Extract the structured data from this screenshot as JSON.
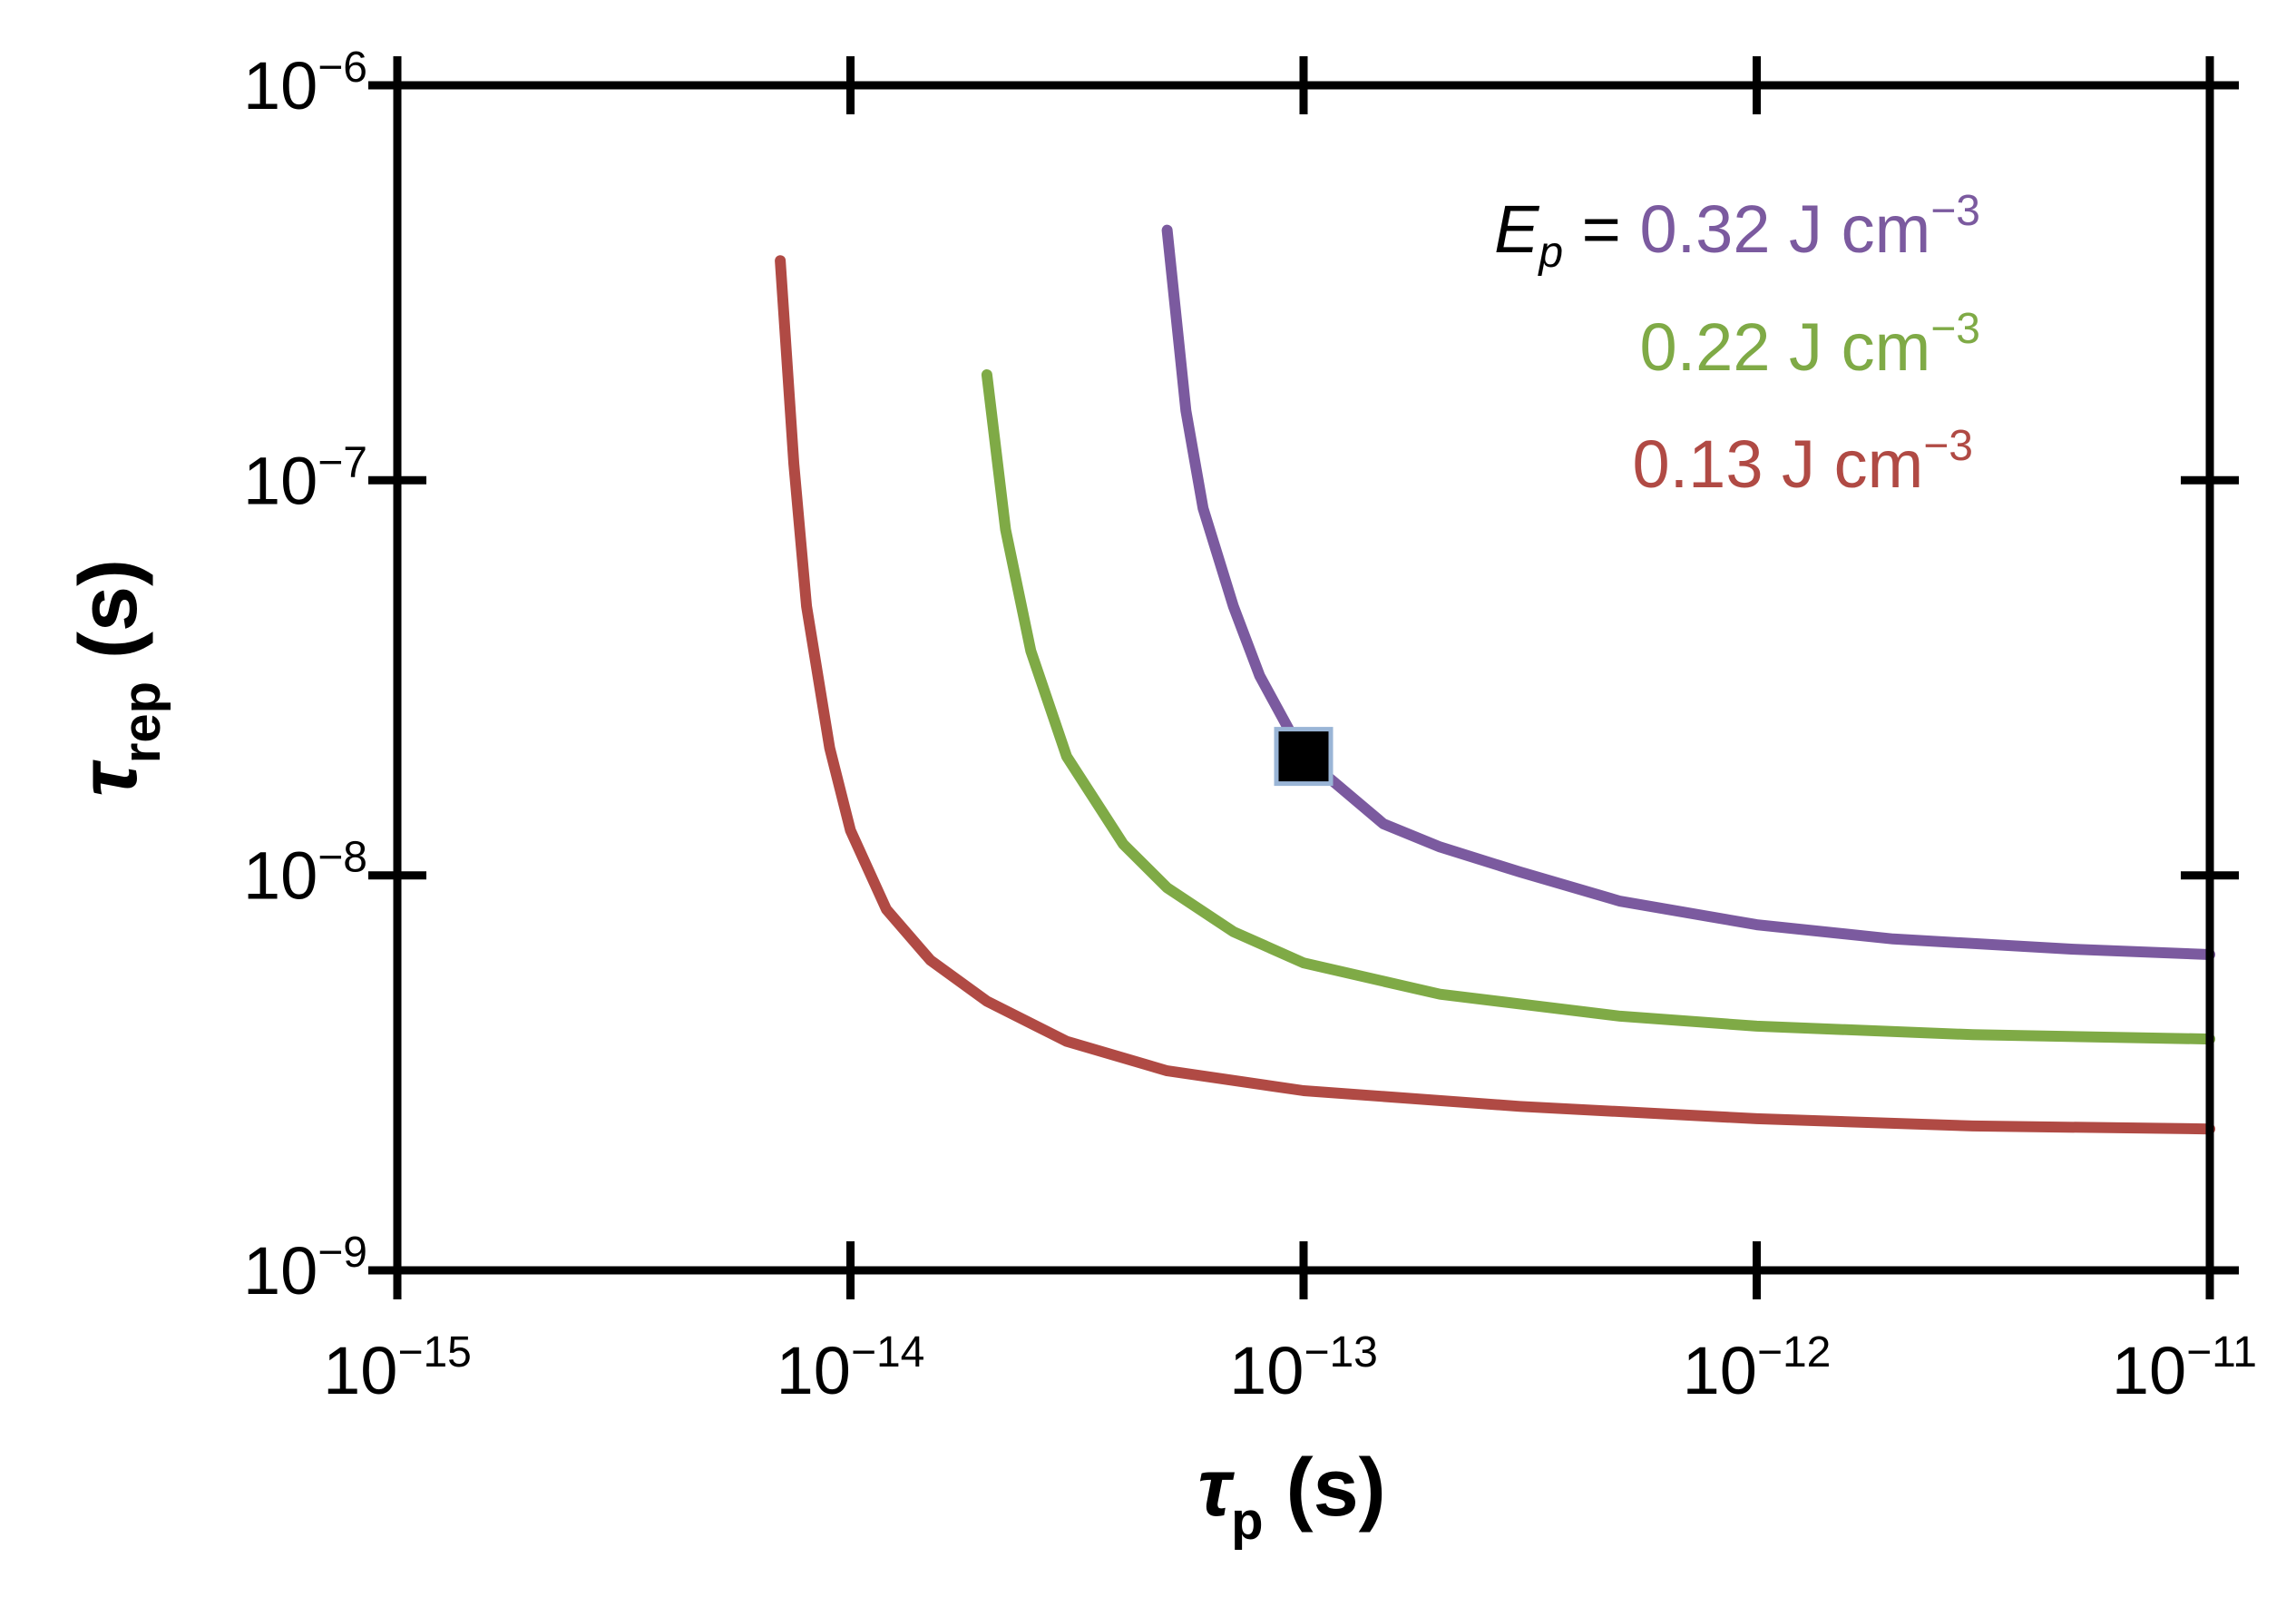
{
  "chart_data": {
    "type": "line",
    "xscale": "log",
    "yscale": "log",
    "xlim": [
      1e-15,
      1e-11
    ],
    "ylim": [
      1e-09,
      1e-06
    ],
    "xticks": [
      {
        "value": 1e-15,
        "base": "10",
        "exp": "−15"
      },
      {
        "value": 1e-14,
        "base": "10",
        "exp": "−14"
      },
      {
        "value": 1e-13,
        "base": "10",
        "exp": "−13"
      },
      {
        "value": 1e-12,
        "base": "10",
        "exp": "−12"
      },
      {
        "value": 1e-11,
        "base": "10",
        "exp": "−11"
      }
    ],
    "yticks": [
      {
        "value": 1e-09,
        "base": "10",
        "exp": "−9"
      },
      {
        "value": 1e-08,
        "base": "10",
        "exp": "−8"
      },
      {
        "value": 1e-07,
        "base": "10",
        "exp": "−7"
      },
      {
        "value": 1e-06,
        "base": "10",
        "exp": "−6"
      }
    ],
    "xlabel": {
      "symbol": "τ",
      "sub": "p",
      "unit": " (s)"
    },
    "ylabel": {
      "symbol": "τ",
      "sub": "rep",
      "unit": " (s)"
    },
    "legend": {
      "prefix_symbol": "E",
      "prefix_sub": "p",
      "prefix_eq": " = ",
      "placement": "top-right"
    },
    "series": [
      {
        "name": "0.32 J cm−3",
        "value": "0.32",
        "unit": " J cm",
        "unit_exp": "−3",
        "color": "#7b5a9f",
        "points": [
          [
            5e-14,
            4.3e-07
          ],
          [
            5.5e-14,
            1.5e-07
          ],
          [
            6e-14,
            8.5e-08
          ],
          [
            7e-14,
            4.8e-08
          ],
          [
            8e-14,
            3.2e-08
          ],
          [
            1e-13,
            2e-08
          ],
          [
            1.5e-13,
            1.35e-08
          ],
          [
            2e-13,
            1.18e-08
          ],
          [
            3e-13,
            1.02e-08
          ],
          [
            5e-13,
            8.6e-09
          ],
          [
            1e-12,
            7.5e-09
          ],
          [
            2e-12,
            6.9e-09
          ],
          [
            5e-12,
            6.5e-09
          ],
          [
            1e-11,
            6.3e-09
          ]
        ]
      },
      {
        "name": "0.22 J cm−3",
        "value": "0.22",
        "unit": " J cm",
        "unit_exp": "−3",
        "color": "#7faa46",
        "points": [
          [
            2e-14,
            1.85e-07
          ],
          [
            2.2e-14,
            7.5e-08
          ],
          [
            2.5e-14,
            3.7e-08
          ],
          [
            3e-14,
            2e-08
          ],
          [
            4e-14,
            1.2e-08
          ],
          [
            5e-14,
            9.3e-09
          ],
          [
            7e-14,
            7.2e-09
          ],
          [
            1e-13,
            6e-09
          ],
          [
            2e-13,
            5e-09
          ],
          [
            5e-13,
            4.4e-09
          ],
          [
            1e-12,
            4.15e-09
          ],
          [
            3e-12,
            3.95e-09
          ],
          [
            1e-11,
            3.85e-09
          ]
        ]
      },
      {
        "name": "0.13 J cm−3",
        "value": "0.13",
        "unit": " J cm",
        "unit_exp": "−3",
        "color": "#b04a44",
        "points": [
          [
            7e-15,
            3.6e-07
          ],
          [
            7.5e-15,
            1.1e-07
          ],
          [
            8e-15,
            4.8e-08
          ],
          [
            9e-15,
            2.1e-08
          ],
          [
            1e-14,
            1.3e-08
          ],
          [
            1.2e-14,
            8.2e-09
          ],
          [
            1.5e-14,
            6.1e-09
          ],
          [
            2e-14,
            4.8e-09
          ],
          [
            3e-14,
            3.8e-09
          ],
          [
            5e-14,
            3.2e-09
          ],
          [
            1e-13,
            2.85e-09
          ],
          [
            3e-13,
            2.6e-09
          ],
          [
            1e-12,
            2.42e-09
          ],
          [
            3e-12,
            2.32e-09
          ],
          [
            1e-11,
            2.28e-09
          ]
        ]
      }
    ],
    "marker": {
      "shape": "square",
      "x": 1e-13,
      "y": 2e-08,
      "fill": "#000000",
      "edge_color": "#9ab5d6"
    }
  }
}
